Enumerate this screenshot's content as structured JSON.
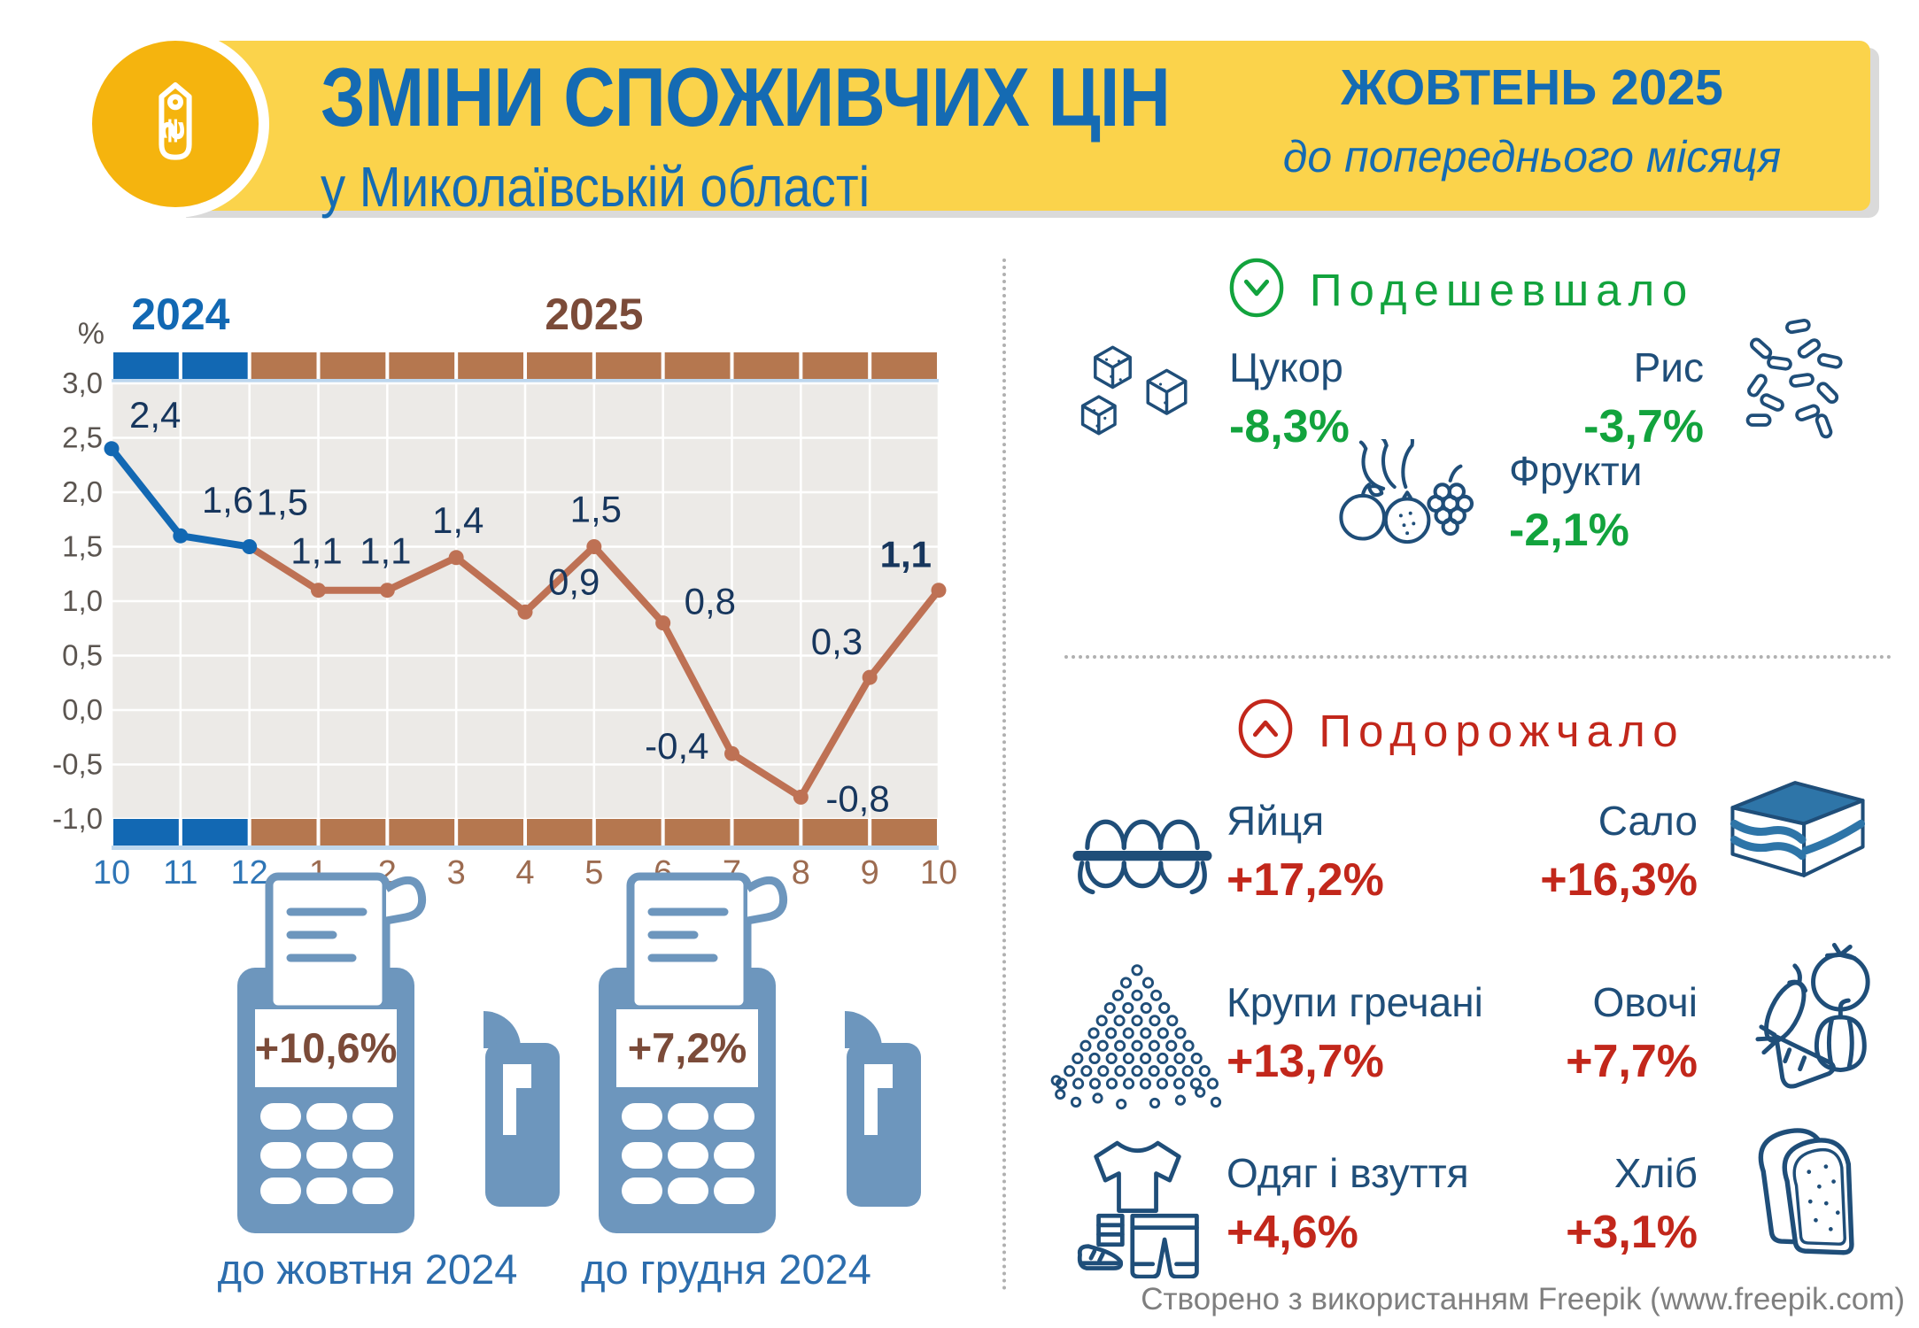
{
  "header": {
    "title": "ЗМІНИ СПОЖИВЧИХ ЦІН",
    "subtitle": "у Миколаївській області",
    "period": "ЖОВТЕНЬ 2025",
    "period_note": "до попереднього місяця",
    "logo_icon": "price-tag-hryvnia-icon"
  },
  "chart_data": {
    "type": "line",
    "title": "",
    "ylabel": "%",
    "ylim": [
      -1.0,
      3.0
    ],
    "ytick_labels": [
      "3,0",
      "2,5",
      "2,0",
      "1,5",
      "1,0",
      "0,5",
      "0,0",
      "-0,5",
      "-1,0"
    ],
    "x_labels": [
      "10",
      "11",
      "12",
      "1",
      "2",
      "3",
      "4",
      "5",
      "6",
      "7",
      "8",
      "9",
      "10"
    ],
    "values": [
      2.4,
      1.6,
      1.5,
      1.1,
      1.1,
      1.4,
      0.9,
      1.5,
      0.8,
      -0.4,
      -0.8,
      0.3,
      1.1
    ],
    "point_labels": [
      "2,4",
      "1,6",
      "1,5",
      "1,1",
      "1,1",
      "1,4",
      "0,9",
      "1,5",
      "0,8",
      "-0,4",
      "-0,8",
      "0,3",
      "1,1"
    ],
    "bold_point_index": 12,
    "grid": true,
    "legend_position": "none",
    "years": [
      {
        "label": "2024",
        "months_count": 3,
        "color": "#1268B3"
      },
      {
        "label": "2025",
        "months_count": 10,
        "color": "#7B4B39"
      }
    ],
    "line_colors": {
      "year_2024": "#1268B3",
      "year_2025": "#BE7154"
    },
    "strip_colors": {
      "year_2024": "#1268B3",
      "year_2025": "#B5774F",
      "underline": "#BDD7EE"
    },
    "month_tick_colors": {
      "year_2024": "#2E75B6",
      "year_2025": "#9C6B50"
    },
    "plot_bg": "#ECEAE7",
    "point_label_color": "#17365D",
    "axis_text_color": "#5B5550"
  },
  "comparisons": [
    {
      "value": "+10,6%",
      "caption": "до жовтня 2024",
      "icon": "pos-terminal-icon"
    },
    {
      "value": "+7,2%",
      "caption": "до грудня 2024",
      "icon": "pos-terminal-icon"
    }
  ],
  "cheaper": {
    "title": "Подешевшало",
    "icon": "chevron-down-circle-icon",
    "color": "#12A33D",
    "items": [
      {
        "name": "Цукор",
        "value": "-8,3%",
        "icon": "sugar-cubes-icon"
      },
      {
        "name": "Рис",
        "value": "-3,7%",
        "icon": "rice-grains-icon"
      },
      {
        "name": "Фрукти",
        "value": "-2,1%",
        "icon": "fruits-icon"
      }
    ]
  },
  "pricier": {
    "title": "Подорожчало",
    "icon": "chevron-up-circle-icon",
    "color": "#C2271B",
    "items": [
      {
        "name": "Яйця",
        "value": "+17,2%",
        "icon": "egg-tray-icon"
      },
      {
        "name": "Сало",
        "value": "+16,3%",
        "icon": "salo-icon"
      },
      {
        "name": "Крупи гречані",
        "value": "+13,7%",
        "icon": "buckwheat-pile-icon"
      },
      {
        "name": "Овочі",
        "value": "+7,7%",
        "icon": "vegetables-icon"
      },
      {
        "name": "Одяг і взуття",
        "value": "+4,6%",
        "icon": "clothes-shoes-icon"
      },
      {
        "name": "Хліб",
        "value": "+3,1%",
        "icon": "bread-icon"
      }
    ]
  },
  "footer": {
    "credit": "Створено з використанням Freepik (www.freepik.com)"
  },
  "colors": {
    "banner": "#FBD34B",
    "logo_circle": "#F5B40E",
    "header_blue": "#156BB3",
    "green": "#12A33D",
    "red": "#C2271B",
    "item_navy": "#1F4E79",
    "terminal_blue": "#6D96BD",
    "terminal_value_brown": "#7B4B39",
    "caption_blue": "#2C6DAD",
    "footer_gray": "#7F7F7F"
  }
}
